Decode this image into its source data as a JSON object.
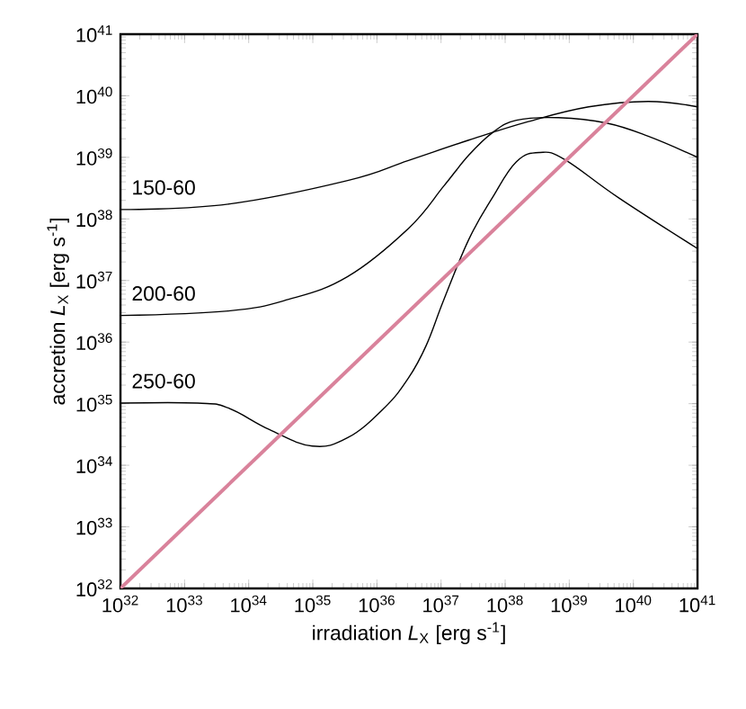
{
  "chart_data": {
    "type": "line",
    "xlabel": "irradiation *L*$_{X}$ [erg s$^{-1}$]",
    "ylabel": "accretion *L*$_{X}$ [erg s$^{-1}$]",
    "log": "xy",
    "xlim": [
      1e+32,
      1e+41
    ],
    "ylim": [
      1e+32,
      1e+41
    ],
    "xticks": [
      {
        "value": 1e+32,
        "label": "10$^{32}$"
      },
      {
        "value": 1e+33,
        "label": "10$^{33}$"
      },
      {
        "value": 1e+34,
        "label": "10$^{34}$"
      },
      {
        "value": 1e+35,
        "label": "10$^{35}$"
      },
      {
        "value": 1e+36,
        "label": "10$^{36}$"
      },
      {
        "value": 1e+37,
        "label": "10$^{37}$"
      },
      {
        "value": 1e+38,
        "label": "10$^{38}$"
      },
      {
        "value": 1e+39,
        "label": "10$^{39}$"
      },
      {
        "value": 1e+40,
        "label": "10$^{40}$"
      },
      {
        "value": 1e+41,
        "label": "10$^{41}$"
      }
    ],
    "yticks": [
      {
        "value": 1e+32,
        "label": "10$^{32}$"
      },
      {
        "value": 1e+33,
        "label": "10$^{33}$"
      },
      {
        "value": 1e+34,
        "label": "10$^{34}$"
      },
      {
        "value": 1e+35,
        "label": "10$^{35}$"
      },
      {
        "value": 1e+36,
        "label": "10$^{36}$"
      },
      {
        "value": 1e+37,
        "label": "10$^{37}$"
      },
      {
        "value": 1e+38,
        "label": "10$^{38}$"
      },
      {
        "value": 1e+39,
        "label": "10$^{39}$"
      },
      {
        "value": 1e+40,
        "label": "10$^{40}$"
      },
      {
        "value": 1e+41,
        "label": "10$^{41}$"
      }
    ],
    "series": [
      {
        "name": "150-60",
        "color": "#000000",
        "x": [
          1e+32,
          4.8e+33,
          3.5e+35,
          3.1e+36,
          2.7e+37,
          2.3e+38,
          2e+39,
          1.7e+40,
          1e+41
        ],
        "values": [
          1.42e+38,
          1.74e+38,
          4.2e+38,
          8.9e+38,
          1.9e+39,
          3.8e+39,
          6.6e+39,
          8.1e+39,
          6.6e+39
        ]
      },
      {
        "name": "200-60",
        "color": "#000000",
        "x": [
          1e+32,
          4.8e+33,
          4.1e+34,
          3.5e+35,
          3.1e+36,
          1.1e+37,
          2.7e+37,
          6.3e+37,
          1.5e+38,
          6.8e+38,
          3.8e+39,
          1.7e+40,
          1e+41
        ],
        "values": [
          2.7e+36,
          3.2e+36,
          4.9e+36,
          1.16e+37,
          7e+37,
          3.4e+38,
          1.08e+39,
          2.5e+39,
          4e+39,
          4.4e+39,
          3.6e+39,
          2.2e+39,
          1e+39
        ]
      },
      {
        "name": "250-60",
        "color": "#000000",
        "x": [
          1e+32,
          1.6e+33,
          4.8e+33,
          2.1e+34,
          9.8e+34,
          3.5e+35,
          1.3e+36,
          3.1e+36,
          5.9e+36,
          1.1e+37,
          2.7e+37,
          6.3e+37,
          1.5e+38,
          3.5e+38,
          8.5e+38,
          5.9e+39,
          1e+41
        ],
        "values": [
          1.02e+35,
          1.02e+35,
          8.5e+34,
          3.8e+34,
          2.05e+34,
          2.8e+34,
          8.5e+34,
          2.6e+35,
          8.9e+35,
          4.8e+36,
          4.6e+37,
          2.2e+38,
          8.5e+38,
          1.2e+39,
          9.2e+38,
          2.2e+38,
          3.3e+37
        ]
      },
      {
        "color": "#d9829b",
        "x": [
          1e+32,
          1e+41
        ],
        "values": [
          1e+32,
          1e+41
        ]
      }
    ]
  }
}
